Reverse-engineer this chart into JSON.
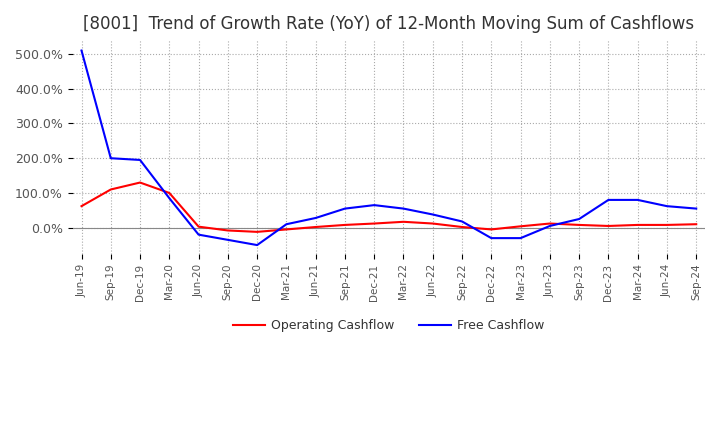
{
  "title": "[8001]  Trend of Growth Rate (YoY) of 12-Month Moving Sum of Cashflows",
  "title_fontsize": 12,
  "title_color": "#333333",
  "background_color": "#ffffff",
  "plot_background_color": "#ffffff",
  "grid_color": "#aaaaaa",
  "xlabel": "",
  "ylabel": "",
  "ylim": [
    -75,
    540
  ],
  "yticks": [
    0,
    100,
    200,
    300,
    400,
    500
  ],
  "ytick_labels": [
    "0.0%",
    "100.0%",
    "200.0%",
    "300.0%",
    "400.0%",
    "500.0%"
  ],
  "legend_labels": [
    "Operating Cashflow",
    "Free Cashflow"
  ],
  "legend_colors": [
    "#ff0000",
    "#0000ff"
  ],
  "x_labels": [
    "Jun-19",
    "Sep-19",
    "Dec-19",
    "Mar-20",
    "Jun-20",
    "Sep-20",
    "Dec-20",
    "Mar-21",
    "Jun-21",
    "Sep-21",
    "Dec-21",
    "Mar-22",
    "Jun-22",
    "Sep-22",
    "Dec-22",
    "Mar-23",
    "Jun-23",
    "Sep-23",
    "Dec-23",
    "Mar-24",
    "Jun-24",
    "Sep-24"
  ],
  "operating_cashflow": [
    62,
    110,
    130,
    100,
    3,
    -8,
    -12,
    -5,
    2,
    8,
    12,
    17,
    12,
    2,
    -5,
    4,
    12,
    8,
    5,
    8,
    8,
    10
  ],
  "free_cashflow": [
    510,
    200,
    195,
    85,
    -20,
    -35,
    -50,
    10,
    28,
    55,
    65,
    55,
    38,
    18,
    -30,
    -30,
    5,
    25,
    80,
    80,
    62,
    55
  ]
}
